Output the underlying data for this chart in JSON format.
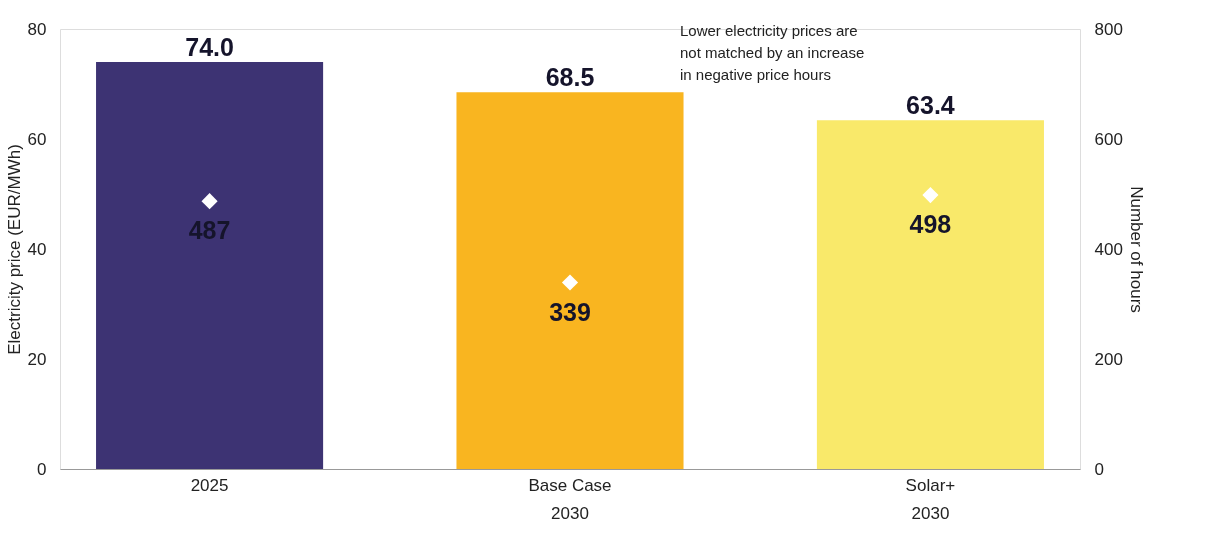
{
  "chart_data": {
    "type": "bar",
    "categories": [
      "2025",
      "Base Case\n2030",
      "Solar+\n2030"
    ],
    "series": [
      {
        "colors": [
          "#3d3373",
          "#f9b520",
          "#f9e96a"
        ],
        "values": [
          74.0,
          68.5,
          63.4
        ],
        "value_labels": [
          "74.0",
          "68.5",
          "63.4"
        ]
      },
      {
        "type": "scatter",
        "axis": "y2",
        "color": "#ffffff",
        "marker": "diamond",
        "values": [
          487,
          339,
          498
        ],
        "value_labels": [
          "487",
          "339",
          "498"
        ]
      }
    ],
    "ylabel": "Electricity price (EUR/MWh)",
    "y2label": "Number of hours",
    "ylim": [
      0,
      80
    ],
    "yticks": [
      0,
      20,
      40,
      60,
      80
    ],
    "y2lim": [
      0,
      800
    ],
    "y2ticks": [
      0,
      200,
      400,
      600,
      800
    ],
    "annotations": [
      "Lower electricity prices are\nnot matched by an increase\nin negative price hours"
    ],
    "grid": false
  }
}
